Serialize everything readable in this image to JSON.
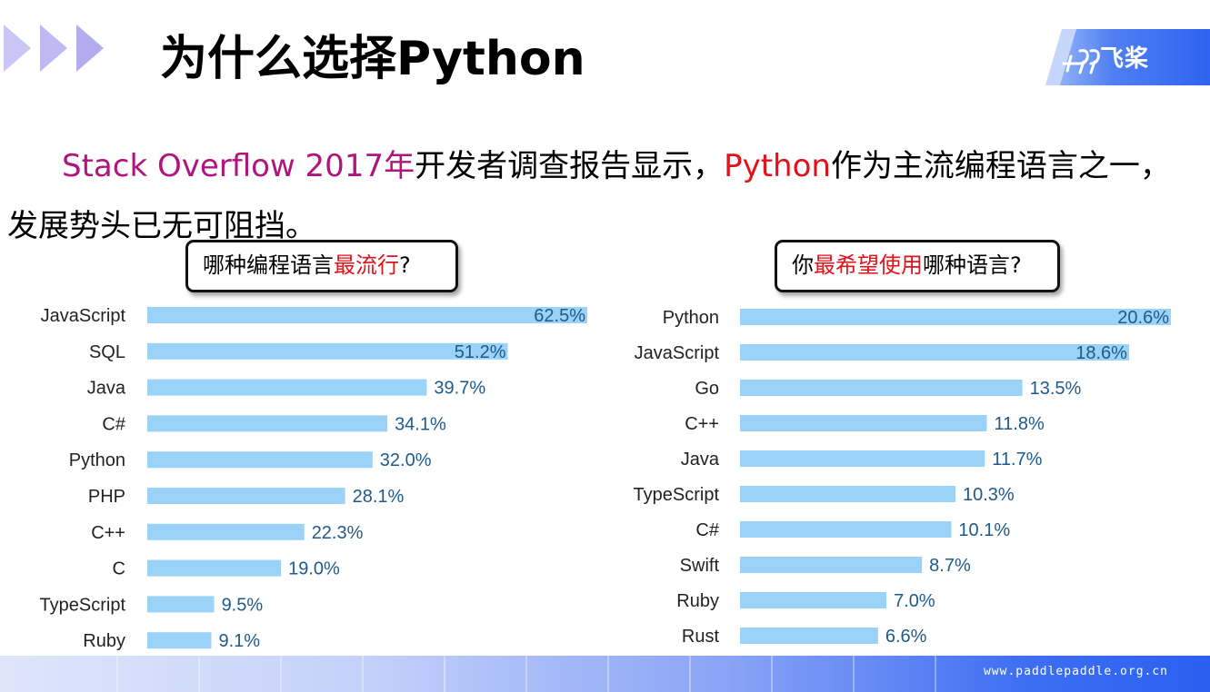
{
  "header": {
    "title": "为什么选择Python",
    "logo_text": "飞桨"
  },
  "intro": {
    "source": "Stack Overflow 2017年",
    "text1": "开发者调查报告显示，",
    "python": "Python",
    "text2": "作为主流编程语言之一，",
    "line2": "发展势头已无可阻挡。"
  },
  "questions": {
    "left": {
      "prefix": "哪种编程语言",
      "highlight": "最流行",
      "suffix": "?"
    },
    "right": {
      "prefix": "你",
      "highlight": "最希望使用",
      "suffix": "哪种语言?"
    }
  },
  "colors": {
    "bar": "#9ad3f7",
    "value_text": "#1e5a8c",
    "highlight_red": "#e2111a",
    "highlight_magenta": "#b0157d"
  },
  "chart_data": [
    {
      "type": "bar",
      "orientation": "horizontal",
      "categories": [
        "JavaScript",
        "SQL",
        "Java",
        "C#",
        "Python",
        "PHP",
        "C++",
        "C",
        "TypeScript",
        "Ruby"
      ],
      "values": [
        62.5,
        51.2,
        39.7,
        34.1,
        32.0,
        28.1,
        22.3,
        19.0,
        9.5,
        9.1
      ],
      "value_labels": [
        "62.5%",
        "51.2%",
        "39.7%",
        "34.1%",
        "32.0%",
        "28.1%",
        "22.3%",
        "19.0%",
        "9.5%",
        "9.1%"
      ],
      "xlim": [
        0,
        62.5
      ]
    },
    {
      "type": "bar",
      "orientation": "horizontal",
      "categories": [
        "Python",
        "JavaScript",
        "Go",
        "C++",
        "Java",
        "TypeScript",
        "C#",
        "Swift",
        "Ruby",
        "Rust"
      ],
      "values": [
        20.6,
        18.6,
        13.5,
        11.8,
        11.7,
        10.3,
        10.1,
        8.7,
        7.0,
        6.6
      ],
      "value_labels": [
        "20.6%",
        "18.6%",
        "13.5%",
        "11.8%",
        "11.7%",
        "10.3%",
        "10.1%",
        "8.7%",
        "7.0%",
        "6.6%"
      ],
      "xlim": [
        0,
        20.6
      ]
    }
  ],
  "footer": {
    "url": "www.paddlepaddle.org.cn"
  }
}
